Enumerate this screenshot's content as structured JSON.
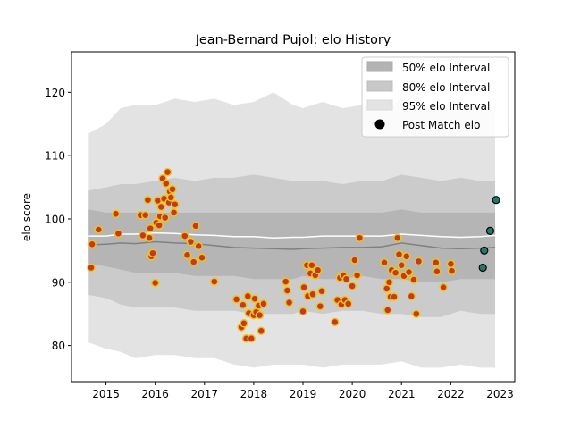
{
  "chart_data": {
    "type": "line",
    "title": "Jean-Bernard Pujol: elo History",
    "xlabel": "",
    "ylabel": "elo score",
    "xlim": [
      2014.3,
      2023.3
    ],
    "ylim": [
      74.3,
      126.4
    ],
    "x_ticks": [
      2015,
      2016,
      2017,
      2018,
      2019,
      2020,
      2021,
      2022,
      2023
    ],
    "y_ticks": [
      80,
      90,
      100,
      110,
      120
    ],
    "grid": false,
    "legend_position": "top-right",
    "legend": [
      {
        "label": "50% elo Interval",
        "kind": "band",
        "color": "#b3b3b3"
      },
      {
        "label": "80% elo Interval",
        "kind": "band",
        "color": "#c8c8c8"
      },
      {
        "label": "95% elo Interval",
        "kind": "band",
        "color": "#e3e3e3"
      },
      {
        "label": "Post Match elo",
        "kind": "marker",
        "color": "#000000"
      }
    ],
    "colors": {
      "band95": "#e3e3e3",
      "band80": "#cbcbcb",
      "band50": "#b5b5b5",
      "median_line": "#808080",
      "mean_line": "#ffffff",
      "point_fill": "#c0392b",
      "point_edge": "#f1c40f",
      "future_fill": "#1f7a6b",
      "future_edge": "#000000"
    },
    "bands": {
      "x": [
        2014.65,
        2015.0,
        2015.3,
        2015.6,
        2016.0,
        2016.4,
        2016.8,
        2017.2,
        2017.6,
        2018.0,
        2018.4,
        2018.8,
        2019.0,
        2019.4,
        2019.8,
        2020.2,
        2020.6,
        2021.0,
        2021.4,
        2021.8,
        2022.2,
        2022.6,
        2022.9
      ],
      "p95_low": [
        80.5,
        79.5,
        79.0,
        78.0,
        78.5,
        78.5,
        78.0,
        78.0,
        77.0,
        76.5,
        77.0,
        77.0,
        77.0,
        76.5,
        77.0,
        77.0,
        77.0,
        77.5,
        76.5,
        76.5,
        77.0,
        76.5,
        76.5
      ],
      "p95_high": [
        113.5,
        115.0,
        117.5,
        118.0,
        118.0,
        119.0,
        118.5,
        119.0,
        118.0,
        118.5,
        120.0,
        118.0,
        117.5,
        118.5,
        117.5,
        118.0,
        117.0,
        119.0,
        118.0,
        117.5,
        118.0,
        117.5,
        117.0
      ],
      "p80_low": [
        88.0,
        87.5,
        86.5,
        86.0,
        86.0,
        86.0,
        85.5,
        85.5,
        85.5,
        85.0,
        85.0,
        85.0,
        85.5,
        85.0,
        85.5,
        85.5,
        85.0,
        85.0,
        84.5,
        84.5,
        85.5,
        85.0,
        85.0
      ],
      "p80_high": [
        104.5,
        105.0,
        105.5,
        105.5,
        106.0,
        106.5,
        106.0,
        106.5,
        106.5,
        107.0,
        106.5,
        106.0,
        106.0,
        106.0,
        105.5,
        106.0,
        106.0,
        107.0,
        106.5,
        106.0,
        106.5,
        106.0,
        106.0
      ],
      "p50_low": [
        93.0,
        92.5,
        92.0,
        91.5,
        91.5,
        91.5,
        91.0,
        91.0,
        91.0,
        90.5,
        90.5,
        90.5,
        91.0,
        90.5,
        90.5,
        91.0,
        90.5,
        90.5,
        90.0,
        90.0,
        90.5,
        90.5,
        90.5
      ],
      "p50_high": [
        101.5,
        101.0,
        101.0,
        101.0,
        101.0,
        101.0,
        101.0,
        101.0,
        101.0,
        101.0,
        101.0,
        101.0,
        101.0,
        101.0,
        101.0,
        101.0,
        101.0,
        101.5,
        101.0,
        101.0,
        101.0,
        101.0,
        101.0
      ],
      "median": [
        95.9,
        96.0,
        96.2,
        96.1,
        96.4,
        96.2,
        96.1,
        95.8,
        95.5,
        95.4,
        95.3,
        95.2,
        95.3,
        95.4,
        95.5,
        95.5,
        95.6,
        96.2,
        95.8,
        95.4,
        95.3,
        95.4,
        95.5
      ],
      "mean": [
        97.3,
        97.3,
        97.6,
        97.6,
        97.8,
        97.7,
        97.5,
        97.4,
        97.2,
        97.2,
        97.0,
        97.1,
        97.1,
        97.3,
        97.3,
        97.3,
        97.3,
        97.6,
        97.4,
        97.2,
        97.1,
        97.2,
        97.4
      ]
    },
    "post_match": {
      "x": [
        2014.7,
        2014.72,
        2014.85,
        2015.2,
        2015.25,
        2015.7,
        2015.75,
        2015.8,
        2015.85,
        2015.88,
        2015.9,
        2015.92,
        2015.95,
        2016.0,
        2016.02,
        2016.05,
        2016.08,
        2016.1,
        2016.12,
        2016.15,
        2016.18,
        2016.2,
        2016.22,
        2016.25,
        2016.28,
        2016.3,
        2016.32,
        2016.35,
        2016.38,
        2016.4,
        2016.6,
        2016.65,
        2016.72,
        2016.78,
        2016.82,
        2016.88,
        2016.95,
        2017.2,
        2017.65,
        2017.75,
        2017.78,
        2017.8,
        2017.85,
        2017.88,
        2017.9,
        2017.95,
        2018.0,
        2018.02,
        2018.05,
        2018.1,
        2018.12,
        2018.15,
        2018.2,
        2018.65,
        2018.68,
        2018.72,
        2019.0,
        2019.02,
        2019.08,
        2019.1,
        2019.15,
        2019.18,
        2019.2,
        2019.25,
        2019.3,
        2019.35,
        2019.38,
        2019.65,
        2019.7,
        2019.75,
        2019.78,
        2019.82,
        2019.85,
        2019.88,
        2019.92,
        2020.0,
        2020.05,
        2020.1,
        2020.15,
        2020.65,
        2020.7,
        2020.72,
        2020.75,
        2020.78,
        2020.8,
        2020.85,
        2020.88,
        2020.92,
        2020.95,
        2021.0,
        2021.05,
        2021.1,
        2021.15,
        2021.2,
        2021.25,
        2021.3,
        2021.35,
        2021.7,
        2021.72,
        2021.85,
        2022.0,
        2022.02
      ],
      "y": [
        92.3,
        96.0,
        98.3,
        100.8,
        97.7,
        100.6,
        97.4,
        100.6,
        103.0,
        97.0,
        98.5,
        94.1,
        94.6,
        89.9,
        99.4,
        102.9,
        99.0,
        100.4,
        101.9,
        106.4,
        103.2,
        100.2,
        105.6,
        107.4,
        102.6,
        104.3,
        103.4,
        104.7,
        101.0,
        102.3,
        97.3,
        94.3,
        96.4,
        93.2,
        98.9,
        95.7,
        93.9,
        90.1,
        87.3,
        82.9,
        86.4,
        83.5,
        81.1,
        87.8,
        85.1,
        81.1,
        84.8,
        87.4,
        85.3,
        86.3,
        84.8,
        82.3,
        86.6,
        90.1,
        88.7,
        86.8,
        85.4,
        89.2,
        92.7,
        87.8,
        91.4,
        92.7,
        88.1,
        91.1,
        91.9,
        86.2,
        88.6,
        83.7,
        87.2,
        90.7,
        86.5,
        91.1,
        87.2,
        90.5,
        86.6,
        89.4,
        93.5,
        91.1,
        97.0,
        93.1,
        89.0,
        85.6,
        90.0,
        87.7,
        91.9,
        87.7,
        91.5,
        97.0,
        94.4,
        92.7,
        91.0,
        94.1,
        91.6,
        87.8,
        90.4,
        85.0,
        93.3,
        93.1,
        91.7,
        89.2,
        92.9,
        91.8
      ],
      "future_x": [
        2022.65,
        2022.68,
        2022.8,
        2022.92
      ],
      "future_y": [
        92.3,
        95.0,
        98.1,
        103.0
      ]
    }
  }
}
